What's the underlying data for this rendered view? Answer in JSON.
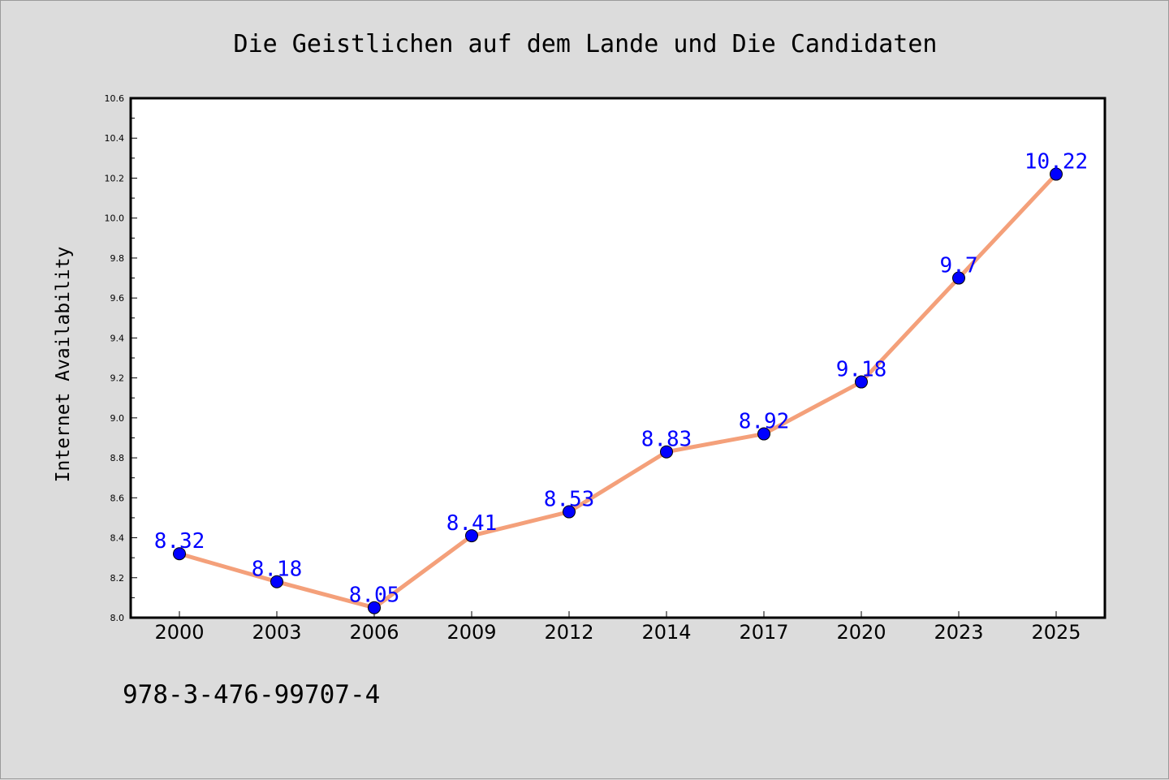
{
  "chart_data": {
    "type": "line",
    "title": "Die Geistlichen auf dem Lande und Die Candidaten",
    "xlabel": "",
    "ylabel": "Internet Availability",
    "categories": [
      "2000",
      "2003",
      "2006",
      "2009",
      "2012",
      "2014",
      "2017",
      "2020",
      "2023",
      "2025"
    ],
    "series": [
      {
        "values": [
          8.32,
          8.18,
          8.05,
          8.41,
          8.53,
          8.83,
          8.92,
          9.18,
          9.7,
          10.22
        ],
        "data_labels": [
          "8.32",
          "8.18",
          "8.05",
          "8.41",
          "8.53",
          "8.83",
          "8.92",
          "9.18",
          "9.7",
          "10.22"
        ]
      }
    ],
    "ylim": [
      8.0,
      10.6
    ],
    "yticks": [
      8.0,
      8.2,
      8.4,
      8.6,
      8.8,
      9.0,
      9.2,
      9.4,
      9.6,
      9.8,
      10.0,
      10.2,
      10.4,
      10.6
    ],
    "ytick_labels": [
      "8.0",
      "8.2",
      "8.4",
      "8.6",
      "8.8",
      "9.0",
      "9.2",
      "9.4",
      "9.6",
      "9.8",
      "10.0",
      "10.2",
      "10.4",
      "10.6"
    ],
    "grid": false,
    "legend": "none",
    "colors": {
      "line": "#f4a07a",
      "marker": "#0000ff",
      "data_label": "#0000ff",
      "background": "#dcdcdc",
      "plot_background": "#ffffff"
    }
  },
  "footer": {
    "text": "978-3-476-99707-4"
  }
}
